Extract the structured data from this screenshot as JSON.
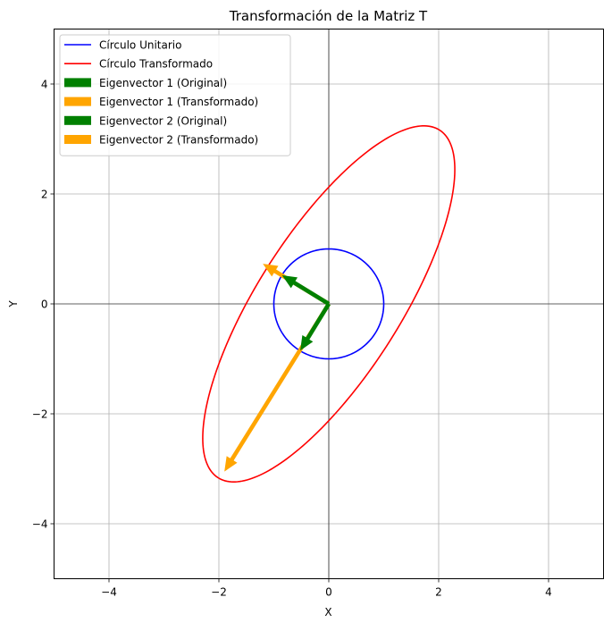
{
  "chart_data": {
    "type": "line",
    "title": "Transformación de la Matriz T",
    "xlabel": "X",
    "ylabel": "Y",
    "xlim": [
      -5,
      5
    ],
    "ylim": [
      -5,
      5
    ],
    "xticks": [
      -4,
      -2,
      0,
      2,
      4
    ],
    "yticks": [
      -4,
      -2,
      0,
      2,
      4
    ],
    "xtick_labels": [
      "−4",
      "−2",
      "0",
      "2",
      "4"
    ],
    "ytick_labels": [
      "−4",
      "−2",
      "0",
      "2",
      "4"
    ],
    "grid": true,
    "legend_position": "upper-left",
    "series": [
      {
        "name": "Círculo Unitario",
        "kind": "curve",
        "color": "#0000ff",
        "shape": "ellipse",
        "center": [
          0,
          0
        ],
        "semi_axes": [
          1,
          1
        ],
        "rotation_deg": 0
      },
      {
        "name": "Círculo Transformado",
        "kind": "curve",
        "color": "#ff0000",
        "shape": "ellipse",
        "center": [
          0,
          0
        ],
        "semi_axes": [
          3.75,
          1.3
        ],
        "rotation_deg": 57.5
      },
      {
        "name": "Eigenvector 1 (Original)",
        "kind": "arrow",
        "color": "#008000",
        "start": [
          0,
          0
        ],
        "end": [
          -0.52,
          -0.85
        ]
      },
      {
        "name": "Eigenvector 1 (Transformado)",
        "kind": "arrow",
        "color": "#ffa500",
        "start": [
          0,
          0
        ],
        "end": [
          -1.9,
          -3.05
        ]
      },
      {
        "name": "Eigenvector 2 (Original)",
        "kind": "arrow",
        "color": "#008000",
        "start": [
          0,
          0
        ],
        "end": [
          -0.85,
          0.52
        ]
      },
      {
        "name": "Eigenvector 2 (Transformado)",
        "kind": "arrow",
        "color": "#ffa500",
        "start": [
          0,
          0
        ],
        "end": [
          -1.2,
          0.73
        ]
      }
    ]
  }
}
